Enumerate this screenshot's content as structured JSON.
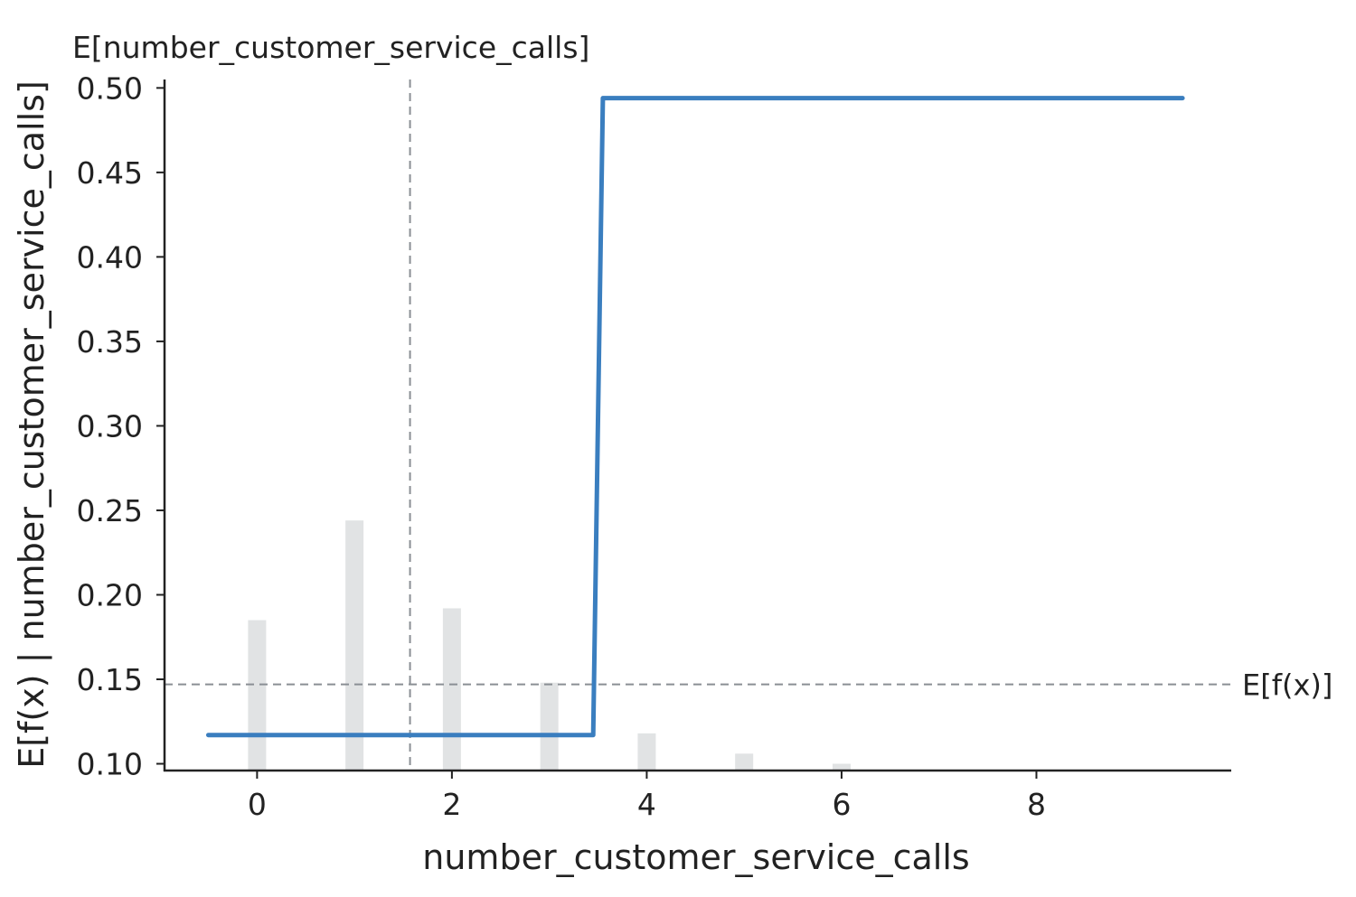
{
  "chart_data": {
    "type": "line",
    "title": "E[number_customer_service_calls]",
    "xlabel": "number_customer_service_calls",
    "ylabel": "E[f(x) | number_customer_service_calls]",
    "xlim": [
      -0.95,
      10.0
    ],
    "ylim": [
      0.096,
      0.505
    ],
    "x_ticks": [
      0,
      2,
      4,
      6,
      8
    ],
    "y_ticks": [
      0.1,
      0.15,
      0.2,
      0.25,
      0.3,
      0.35,
      0.4,
      0.45,
      0.5
    ],
    "y_tick_labels": [
      "0.10",
      "0.15",
      "0.20",
      "0.25",
      "0.30",
      "0.35",
      "0.40",
      "0.45",
      "0.50"
    ],
    "grid": false,
    "series": [
      {
        "points": [
          {
            "x": -0.5,
            "y": 0.117
          },
          {
            "x": 3.45,
            "y": 0.117
          },
          {
            "x": 3.55,
            "y": 0.494
          },
          {
            "x": 9.5,
            "y": 0.494
          }
        ],
        "color": "#3a7ebf"
      }
    ],
    "histogram": {
      "color": "#e1e3e4",
      "bars": [
        {
          "x": 0,
          "top": 0.185
        },
        {
          "x": 1,
          "top": 0.244
        },
        {
          "x": 2,
          "top": 0.192
        },
        {
          "x": 3,
          "top": 0.148
        },
        {
          "x": 4,
          "top": 0.118
        },
        {
          "x": 5,
          "top": 0.106
        },
        {
          "x": 6,
          "top": 0.1
        }
      ]
    },
    "reference_lines": {
      "expected_value": {
        "y": 0.147,
        "label": "E[f(x)]"
      },
      "feature_mean": {
        "x": 1.57
      }
    }
  }
}
